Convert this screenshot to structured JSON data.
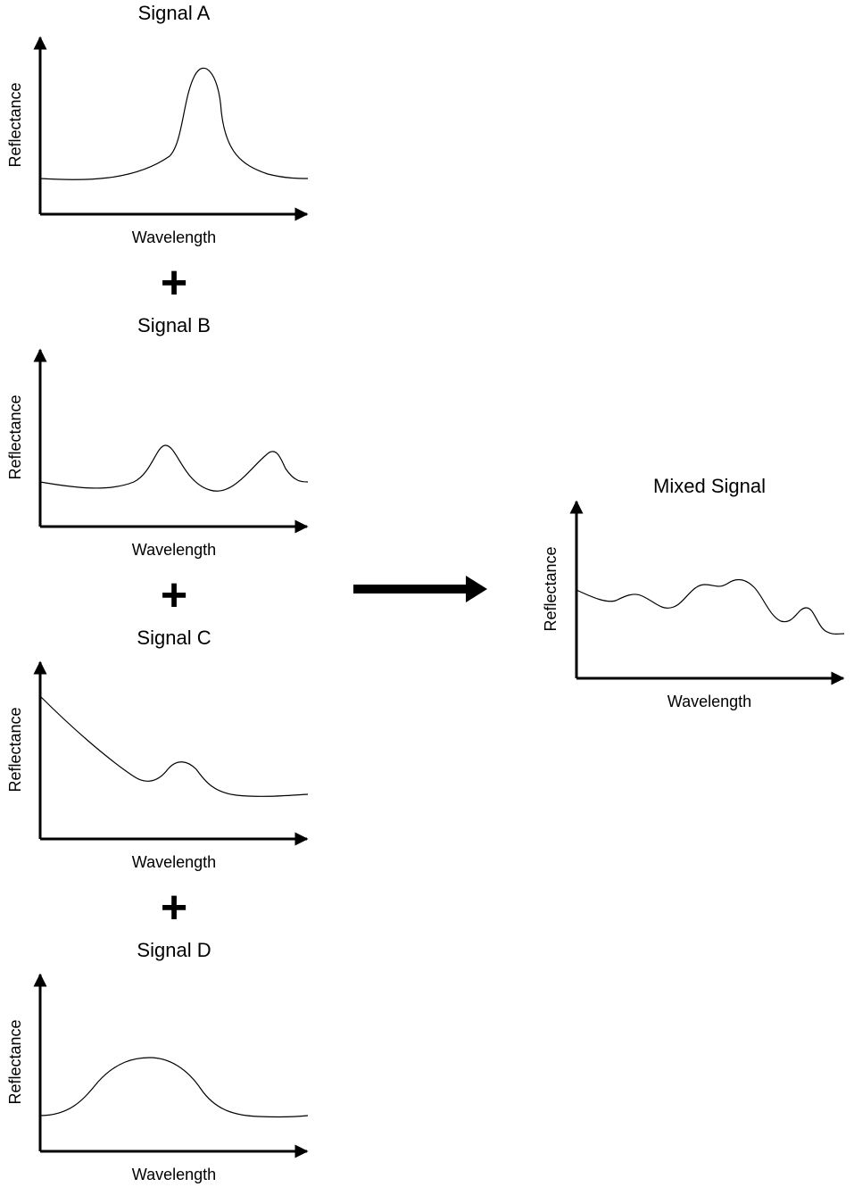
{
  "panels": [
    {
      "title": "Signal A",
      "xlabel": "Wavelength",
      "ylabel": "Reflectance"
    },
    {
      "title": "Signal B",
      "xlabel": "Wavelength",
      "ylabel": "Reflectance"
    },
    {
      "title": "Signal C",
      "xlabel": "Wavelength",
      "ylabel": "Reflectance"
    },
    {
      "title": "Signal D",
      "xlabel": "Wavelength",
      "ylabel": "Reflectance"
    }
  ],
  "operators": [
    "+",
    "+",
    "+"
  ],
  "result": {
    "title": "Mixed Signal",
    "xlabel": "Wavelength",
    "ylabel": "Reflectance"
  },
  "colors": {
    "line": "#000000",
    "background": "#ffffff"
  }
}
